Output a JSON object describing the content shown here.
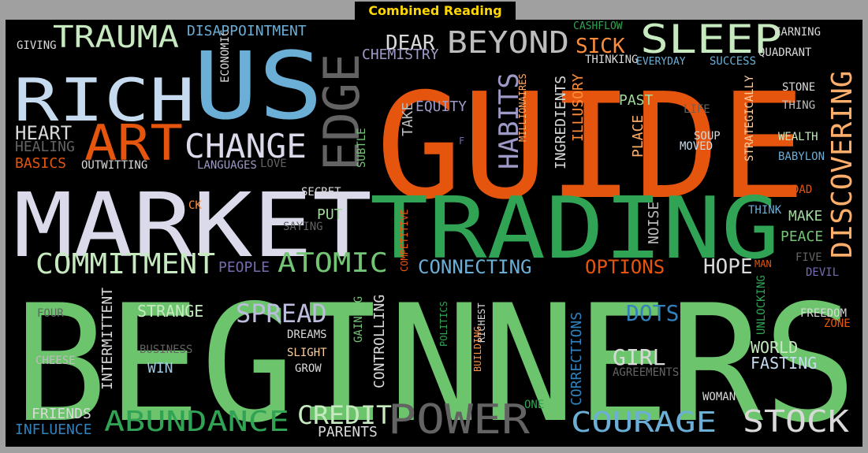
{
  "title": "Combined Reading List",
  "words": [
    {
      "t": "BEGINNERS",
      "c": "#6cc46c"
    },
    {
      "t": "GUIDE",
      "c": "#e6550d"
    },
    {
      "t": "TRADING",
      "c": "#31a354"
    },
    {
      "t": "MARKET",
      "c": "#dadaeb"
    },
    {
      "t": "US",
      "c": "#6baed6"
    },
    {
      "t": "RICH",
      "c": "#c6dbef"
    },
    {
      "t": "EDGE",
      "c": "#636363"
    },
    {
      "t": "SLEEP",
      "c": "#c7e9c0"
    },
    {
      "t": "ART",
      "c": "#e6550d"
    },
    {
      "t": "CHANGE",
      "c": "#dadaeb"
    },
    {
      "t": "TRAUMA",
      "c": "#c7e9c0"
    },
    {
      "t": "BEYOND",
      "c": "#bdbdbd"
    },
    {
      "t": "DEAR",
      "c": "#d9d9d9"
    },
    {
      "t": "CHEMISTRY",
      "c": "#9e9ac8"
    },
    {
      "t": "DISAPPOINTMENT",
      "c": "#6baed6"
    },
    {
      "t": "GIVING",
      "c": "#d9d9d9"
    },
    {
      "t": "ECONOMIC",
      "c": "#d9d9d9"
    },
    {
      "t": "SICK",
      "c": "#fd8d3c"
    },
    {
      "t": "THINKING",
      "c": "#d9d9d9"
    },
    {
      "t": "CASHFLOW",
      "c": "#31a354"
    },
    {
      "t": "EVERYDAY",
      "c": "#6baed6"
    },
    {
      "t": "SUCCESS",
      "c": "#6baed6"
    },
    {
      "t": "EARNING",
      "c": "#d9d9d9"
    },
    {
      "t": "QUADRANT",
      "c": "#d9d9d9"
    },
    {
      "t": "DISCOVERING",
      "c": "#fdae6b"
    },
    {
      "t": "HEART",
      "c": "#d9d9d9"
    },
    {
      "t": "HEALING",
      "c": "#636363"
    },
    {
      "t": "BASICS",
      "c": "#e6550d"
    },
    {
      "t": "OUTWITTING",
      "c": "#d9d9d9"
    },
    {
      "t": "LANGUAGES",
      "c": "#9e9ac8"
    },
    {
      "t": "LOVE",
      "c": "#636363"
    },
    {
      "t": "SUBTLE",
      "c": "#74c476"
    },
    {
      "t": "TAKE",
      "c": "#bdbdbd"
    },
    {
      "t": "EQUITY",
      "c": "#9e9ac8"
    },
    {
      "t": "HABITS",
      "c": "#9e9ac8"
    },
    {
      "t": "MILLIONAIRES",
      "c": "#fdae6b"
    },
    {
      "t": "INGREDIENTS",
      "c": "#d9d9d9"
    },
    {
      "t": "ILLUSORY",
      "c": "#fd8d3c"
    },
    {
      "t": "PAST",
      "c": "#a1d99b"
    },
    {
      "t": "PLACE",
      "c": "#fdae6b"
    },
    {
      "t": "LIFE",
      "c": "#636363"
    },
    {
      "t": "SOUP",
      "c": "#d9d9d9"
    },
    {
      "t": "MOVED",
      "c": "#c6dbef"
    },
    {
      "t": "STRATEGICALLY",
      "c": "#fdd0a2"
    },
    {
      "t": "STONE",
      "c": "#d9d9d9"
    },
    {
      "t": "THING",
      "c": "#bdbdbd"
    },
    {
      "t": "WEALTH",
      "c": "#c7e9c0"
    },
    {
      "t": "BABYLON",
      "c": "#6baed6"
    },
    {
      "t": "F",
      "c": "#756bb1"
    },
    {
      "t": "SECRET",
      "c": "#d9d9d9"
    },
    {
      "t": "CK",
      "c": "#fd8d3c"
    },
    {
      "t": "PUT",
      "c": "#a1d99b"
    },
    {
      "t": "SAYING",
      "c": "#636363"
    },
    {
      "t": "COMPETITIVE",
      "c": "#e6550d"
    },
    {
      "t": "NOISE",
      "c": "#bdbdbd"
    },
    {
      "t": "DAD",
      "c": "#e6550d"
    },
    {
      "t": "THINK",
      "c": "#6baed6"
    },
    {
      "t": "MAKE",
      "c": "#a1d99b"
    },
    {
      "t": "PEACE",
      "c": "#74c476"
    },
    {
      "t": "COMMITMENT",
      "c": "#c7e9c0"
    },
    {
      "t": "PEOPLE",
      "c": "#756bb1"
    },
    {
      "t": "ATOMIC",
      "c": "#74c476"
    },
    {
      "t": "CONNECTING",
      "c": "#6baed6"
    },
    {
      "t": "OPTIONS",
      "c": "#e6550d"
    },
    {
      "t": "HOPE",
      "c": "#d9d9d9"
    },
    {
      "t": "MAN",
      "c": "#e6550d"
    },
    {
      "t": "FIVE",
      "c": "#636363"
    },
    {
      "t": "DEVIL",
      "c": "#756bb1"
    },
    {
      "t": "FOUR",
      "c": "#636363"
    },
    {
      "t": "INTERMITTENT",
      "c": "#d9d9d9"
    },
    {
      "t": "STRANGE",
      "c": "#c7e9c0"
    },
    {
      "t": "SPREAD",
      "c": "#bcbddc"
    },
    {
      "t": "DREAMS",
      "c": "#d9d9d9"
    },
    {
      "t": "SLIGHT",
      "c": "#fdd0a2"
    },
    {
      "t": "GROW",
      "c": "#d9d9d9"
    },
    {
      "t": "BUSINESS",
      "c": "#636363"
    },
    {
      "t": "WIN",
      "c": "#9ecae1"
    },
    {
      "t": "CHEESE",
      "c": "#bdbdbd"
    },
    {
      "t": "GAINING",
      "c": "#74c476"
    },
    {
      "t": "CONTROLLING",
      "c": "#d9d9d9"
    },
    {
      "t": "POLITICS",
      "c": "#31a354"
    },
    {
      "t": "RICHEST",
      "c": "#d9d9d9"
    },
    {
      "t": "BUILDING",
      "c": "#fd8d3c"
    },
    {
      "t": "CORRECTIONS",
      "c": "#3182bd"
    },
    {
      "t": "DOTS",
      "c": "#3182bd"
    },
    {
      "t": "GIRL",
      "c": "#d9d9d9"
    },
    {
      "t": "AGREEMENTS",
      "c": "#636363"
    },
    {
      "t": "UNLOCKING",
      "c": "#31a354"
    },
    {
      "t": "FREEDOM",
      "c": "#d9d9d9"
    },
    {
      "t": "ZONE",
      "c": "#e6550d"
    },
    {
      "t": "WORLD",
      "c": "#c7e9c0"
    },
    {
      "t": "FASTING",
      "c": "#c6dbef"
    },
    {
      "t": "WOMAN",
      "c": "#d9d9d9"
    },
    {
      "t": "FRIENDS",
      "c": "#d9d9d9"
    },
    {
      "t": "INFLUENCE",
      "c": "#3182bd"
    },
    {
      "t": "ABUNDANCE",
      "c": "#31a354"
    },
    {
      "t": "CREDIT",
      "c": "#c7e9c0"
    },
    {
      "t": "PARENTS",
      "c": "#d9d9d9"
    },
    {
      "t": "POWER",
      "c": "#636363"
    },
    {
      "t": "ONE",
      "c": "#31a354"
    },
    {
      "t": "COURAGE",
      "c": "#6baed6"
    },
    {
      "t": "STOCK",
      "c": "#d9d9d9"
    }
  ]
}
